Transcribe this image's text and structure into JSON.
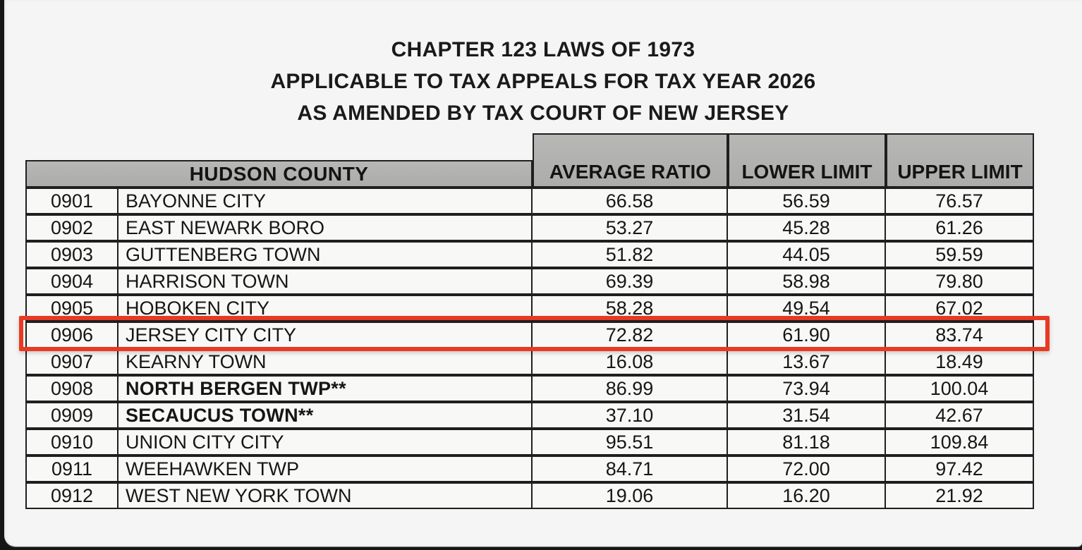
{
  "title": {
    "line1": "CHAPTER 123 LAWS OF 1973",
    "line2": "APPLICABLE TO TAX APPEALS FOR TAX YEAR 2026",
    "line3": "AS AMENDED BY TAX COURT OF NEW JERSEY"
  },
  "table": {
    "county_header": "HUDSON COUNTY",
    "columns": [
      "AVERAGE RATIO",
      "LOWER LIMIT",
      "UPPER LIMIT"
    ],
    "rows": [
      {
        "code": "0901",
        "name": "BAYONNE CITY",
        "bold": false,
        "average_ratio": "66.58",
        "lower_limit": "56.59",
        "upper_limit": "76.57",
        "highlighted": false
      },
      {
        "code": "0902",
        "name": "EAST NEWARK BORO",
        "bold": false,
        "average_ratio": "53.27",
        "lower_limit": "45.28",
        "upper_limit": "61.26",
        "highlighted": false
      },
      {
        "code": "0903",
        "name": "GUTTENBERG TOWN",
        "bold": false,
        "average_ratio": "51.82",
        "lower_limit": "44.05",
        "upper_limit": "59.59",
        "highlighted": false
      },
      {
        "code": "0904",
        "name": "HARRISON TOWN",
        "bold": false,
        "average_ratio": "69.39",
        "lower_limit": "58.98",
        "upper_limit": "79.80",
        "highlighted": false
      },
      {
        "code": "0905",
        "name": "HOBOKEN CITY",
        "bold": false,
        "average_ratio": "58.28",
        "lower_limit": "49.54",
        "upper_limit": "67.02",
        "highlighted": false
      },
      {
        "code": "0906",
        "name": "JERSEY CITY CITY",
        "bold": false,
        "average_ratio": "72.82",
        "lower_limit": "61.90",
        "upper_limit": "83.74",
        "highlighted": true
      },
      {
        "code": "0907",
        "name": "KEARNY TOWN",
        "bold": false,
        "average_ratio": "16.08",
        "lower_limit": "13.67",
        "upper_limit": "18.49",
        "highlighted": false
      },
      {
        "code": "0908",
        "name": "NORTH BERGEN TWP**",
        "bold": true,
        "average_ratio": "86.99",
        "lower_limit": "73.94",
        "upper_limit": "100.04",
        "highlighted": false
      },
      {
        "code": "0909",
        "name": "SECAUCUS TOWN**",
        "bold": true,
        "average_ratio": "37.10",
        "lower_limit": "31.54",
        "upper_limit": "42.67",
        "highlighted": false
      },
      {
        "code": "0910",
        "name": "UNION CITY CITY",
        "bold": false,
        "average_ratio": "95.51",
        "lower_limit": "81.18",
        "upper_limit": "109.84",
        "highlighted": false
      },
      {
        "code": "0911",
        "name": "WEEHAWKEN TWP",
        "bold": false,
        "average_ratio": "84.71",
        "lower_limit": "72.00",
        "upper_limit": "97.42",
        "highlighted": false
      },
      {
        "code": "0912",
        "name": "WEST NEW YORK TOWN",
        "bold": false,
        "average_ratio": "19.06",
        "lower_limit": "16.20",
        "upper_limit": "21.92",
        "highlighted": false
      }
    ]
  },
  "highlight": {
    "row_code": "0906",
    "color": "#e83a23"
  },
  "colors": {
    "header_fill": "#b3b4b2",
    "page_background": "#f4f5f4",
    "frame_background": "#161616",
    "line": "#1f1f1f"
  }
}
